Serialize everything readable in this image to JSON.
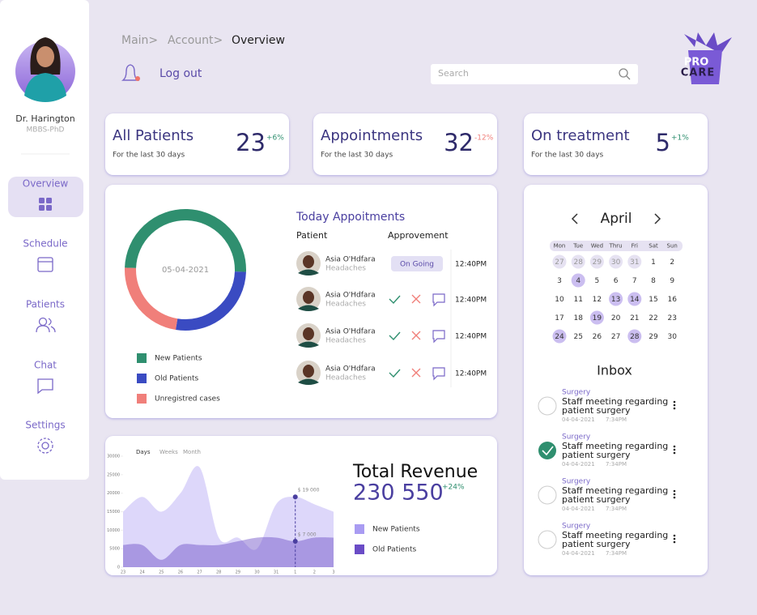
{
  "sidebar": {
    "doctor_name": "Dr. Harington",
    "degree": "MBBS-PhD",
    "nav": [
      "Overview",
      "Schedule",
      "Patients",
      "Chat",
      "Settings"
    ]
  },
  "breadcrumb": [
    "Main>",
    "Account>",
    "Overview"
  ],
  "logout": "Log out",
  "search_placeholder": "Search",
  "logo": [
    "PRO",
    "CARE"
  ],
  "stats": [
    {
      "title": "All Patients",
      "subtitle": "For the last 30 days",
      "value": 23,
      "change": "+6%"
    },
    {
      "title": "Appointments",
      "subtitle": "For the last 30 days",
      "value": 32,
      "change": "-12%"
    },
    {
      "title": "On treatment",
      "subtitle": "For the last 30 days",
      "value": 5,
      "change": "+1%"
    }
  ],
  "appointments": {
    "title": "Today Appoitments",
    "columns": [
      "Patient",
      "Approvement"
    ],
    "rows": [
      {
        "name": "Asia O'Hdfara",
        "condition": "Headaches",
        "status": "On Going",
        "time": "12:40PM"
      },
      {
        "name": "Asia O'Hdfara",
        "condition": "Headaches",
        "time": "12:40PM"
      },
      {
        "name": "Asia O'Hdfara",
        "condition": "Headaches",
        "time": "12:40PM"
      },
      {
        "name": "Asia O'Hdfara",
        "condition": "Headaches",
        "time": "12:40PM"
      }
    ]
  },
  "calendar": {
    "month": "April",
    "weekdays": [
      "Mon",
      "Tue",
      "Wed",
      "Thru",
      "Fri",
      "Sat",
      "Sun"
    ],
    "weeks": [
      [
        27,
        28,
        29,
        30,
        31,
        1,
        2
      ],
      [
        3,
        4,
        5,
        6,
        7,
        8,
        9
      ],
      [
        10,
        11,
        12,
        13,
        14,
        15,
        16
      ],
      [
        17,
        18,
        19,
        20,
        21,
        22,
        23
      ],
      [
        24,
        25,
        26,
        27,
        28,
        29,
        30
      ]
    ],
    "outside_days": [
      27,
      28,
      29,
      30,
      31
    ],
    "highlighted": [
      4,
      13,
      14,
      19,
      24,
      28
    ]
  },
  "inbox": {
    "title": "Inbox",
    "items": [
      {
        "category": "Surgery",
        "text": "Staff meeting regarding patient surgery",
        "date": "04-04-2021",
        "time": "7:34PM",
        "done": false
      },
      {
        "category": "Surgery",
        "text": "Staff meeting regarding patient surgery",
        "date": "04-04-2021",
        "time": "7:34PM",
        "done": true
      },
      {
        "category": "Surgery",
        "text": "Staff meeting regarding patient surgery",
        "date": "04-04-2021",
        "time": "7:34PM",
        "done": false
      },
      {
        "category": "Surgery",
        "text": "Staff meeting regarding patient surgery",
        "date": "04-04-2021",
        "time": "7:34PM",
        "done": false
      }
    ]
  },
  "revenue": {
    "title": "Total Revenue",
    "value": "230 550",
    "change": "+24%",
    "tabs": [
      "Days",
      "Weeks",
      "Month"
    ]
  },
  "chart_data": [
    {
      "type": "pie",
      "center_label": "05-04-2021",
      "categories": [
        "New Patients",
        "Old Patients",
        "Unregistred cases"
      ],
      "values": [
        50,
        27,
        23
      ],
      "colors": [
        "#2f8f6f",
        "#3a4bc2",
        "#f07f7a"
      ]
    },
    {
      "type": "area",
      "categories": [
        "23",
        "24",
        "25",
        "26",
        "27",
        "28",
        "29",
        "30",
        "31",
        "1",
        "2",
        "3"
      ],
      "series": [
        {
          "name": "New Patients",
          "color": "#a99cf2",
          "values": [
            15000,
            19000,
            15000,
            20000,
            27000,
            8000,
            8000,
            5000,
            17000,
            19000,
            17000,
            15000
          ]
        },
        {
          "name": "Old Patients",
          "color": "#6a4cc6",
          "values": [
            6000,
            6000,
            2000,
            6000,
            6000,
            6000,
            7000,
            8000,
            8000,
            7000,
            8000,
            8000
          ]
        }
      ],
      "ylim": [
        0,
        30000
      ],
      "yticks": [
        0,
        5000,
        10000,
        15000,
        20000,
        25000,
        30000
      ],
      "annotations": [
        {
          "category_index": 9,
          "series": 0,
          "text": "$ 19 000"
        },
        {
          "category_index": 9,
          "series": 1,
          "text": "$ 7 000"
        }
      ]
    }
  ]
}
